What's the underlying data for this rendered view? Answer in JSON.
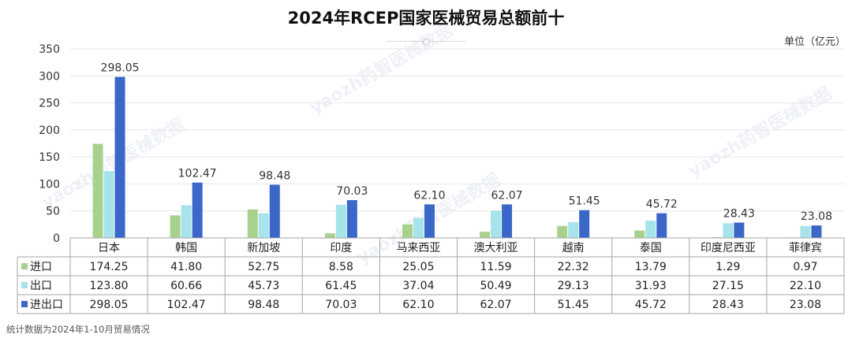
{
  "page": {
    "title": "2024年RCEP国家医械贸易总额前十",
    "unit": "单位（亿元）",
    "footnote": "统计数据为2024年1-10月贸易情况",
    "watermark": "yaozh药智医械数据"
  },
  "chart_data": {
    "type": "bar",
    "title": "2024年RCEP国家医械贸易总额前十",
    "ylabel": "单位（亿元）",
    "ylim": [
      0,
      350
    ],
    "yticks": [
      0,
      50,
      100,
      150,
      200,
      250,
      300,
      350
    ],
    "grid": true,
    "categories": [
      "日本",
      "韩国",
      "新加坡",
      "印度",
      "马来西亚",
      "澳大利亚",
      "越南",
      "泰国",
      "印度尼西亚",
      "菲律宾"
    ],
    "series": [
      {
        "name": "进口",
        "color": "#a9d18e",
        "values": [
          174.25,
          41.8,
          52.75,
          8.58,
          25.05,
          11.59,
          22.32,
          13.79,
          1.29,
          0.97
        ]
      },
      {
        "name": "出口",
        "color": "#a6e3ea",
        "values": [
          123.8,
          60.66,
          45.73,
          61.45,
          37.04,
          50.49,
          29.13,
          31.93,
          27.15,
          22.1
        ]
      },
      {
        "name": "进出口",
        "color": "#3a67c8",
        "values": [
          298.05,
          102.47,
          98.48,
          70.03,
          62.1,
          62.07,
          51.45,
          45.72,
          28.43,
          23.08
        ]
      }
    ],
    "data_labels_series": "进出口",
    "table": {
      "rows": [
        {
          "label": "进口",
          "values": [
            "174.25",
            "41.80",
            "52.75",
            "8.58",
            "25.05",
            "11.59",
            "22.32",
            "13.79",
            "1.29",
            "0.97"
          ]
        },
        {
          "label": "出口",
          "values": [
            "123.80",
            "60.66",
            "45.73",
            "61.45",
            "37.04",
            "50.49",
            "29.13",
            "31.93",
            "27.15",
            "22.10"
          ]
        },
        {
          "label": "进出口",
          "values": [
            "298.05",
            "102.47",
            "98.48",
            "70.03",
            "62.10",
            "62.07",
            "51.45",
            "45.72",
            "28.43",
            "23.08"
          ]
        }
      ]
    }
  }
}
